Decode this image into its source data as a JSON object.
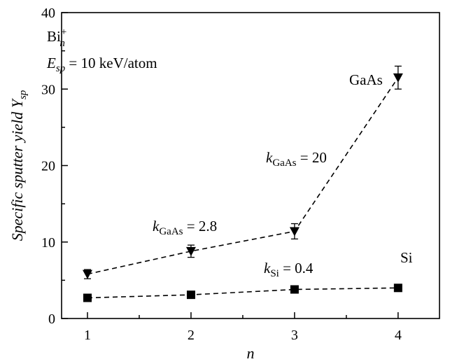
{
  "chart_data": {
    "type": "line",
    "xlabel": "n",
    "ylabel_main": "Specific sputter yield ",
    "ylabel_var": "Y",
    "ylabel_sub": "sp",
    "xlim": [
      0.75,
      4.4
    ],
    "ylim": [
      0,
      40
    ],
    "xticks": [
      1,
      2,
      3,
      4
    ],
    "yticks": [
      0,
      10,
      20,
      30,
      40
    ],
    "grid": false,
    "series": [
      {
        "name": "GaAs",
        "marker": "triangle-down",
        "line": "dashed",
        "x": [
          1,
          2,
          3,
          4
        ],
        "y": [
          5.8,
          8.8,
          11.4,
          31.5
        ],
        "err": [
          0.6,
          0.8,
          1.0,
          1.5
        ]
      },
      {
        "name": "Si",
        "marker": "square",
        "line": "dashed",
        "x": [
          1,
          2,
          3,
          4
        ],
        "y": [
          2.7,
          3.1,
          3.8,
          4.0
        ],
        "err": [
          0,
          0,
          0,
          0
        ]
      }
    ],
    "annotations": {
      "ion_base": "Bi",
      "ion_sup": "+",
      "ion_sub": "n",
      "energy_var": "E",
      "energy_sub": "sp",
      "energy_text": " = 10 keV/atom",
      "k1_var": "k",
      "k1_sub": "GaAs",
      "k1_text": " = 2.8",
      "k2_var": "k",
      "k2_sub": "GaAs",
      "k2_text": " = 20",
      "k3_var": "k",
      "k3_sub": "Si",
      "k3_text": " = 0.4",
      "label_gaas": "GaAs",
      "label_si": "Si"
    }
  }
}
